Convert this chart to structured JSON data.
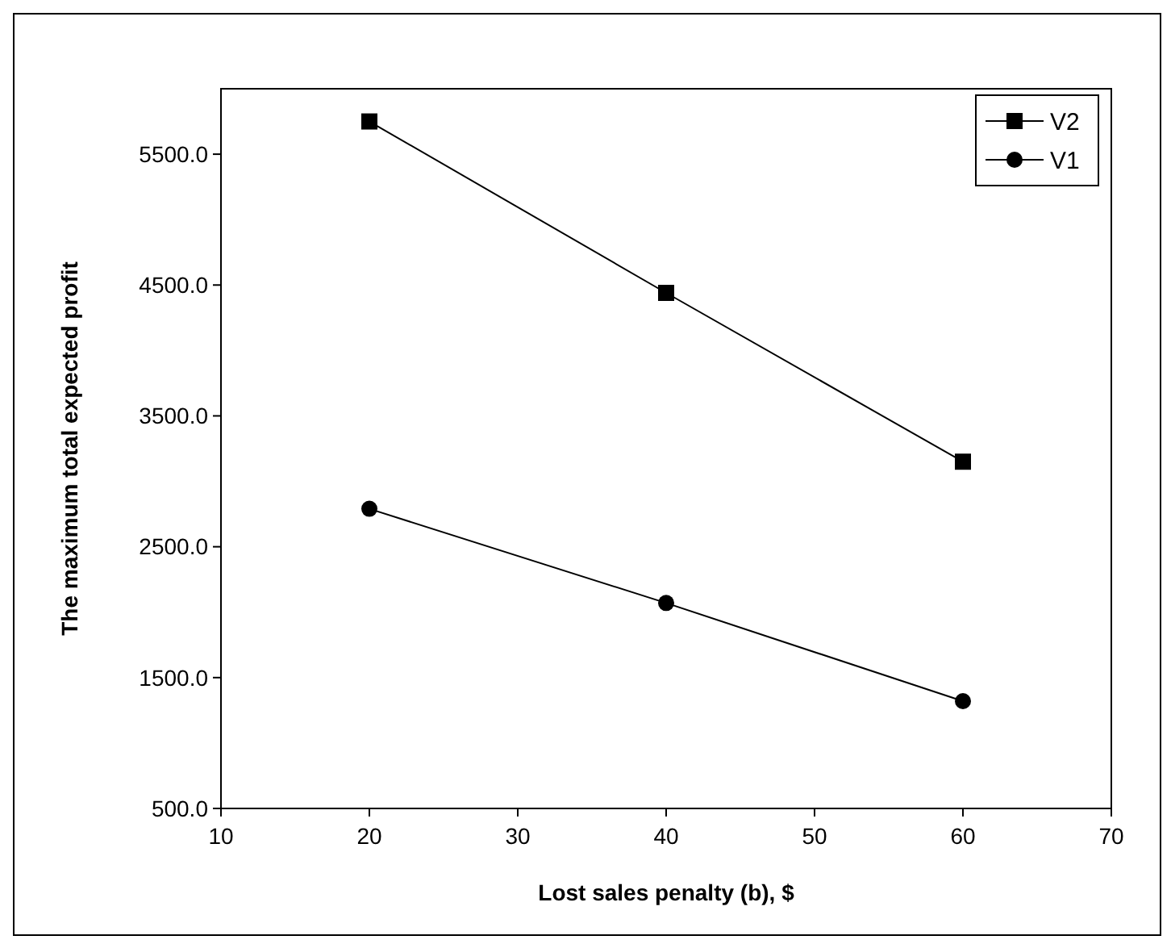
{
  "chart_data": {
    "type": "line",
    "xlabel": "Lost sales penalty (b), $",
    "ylabel": "The maximum total expected profit",
    "x": [
      20,
      40,
      60
    ],
    "series": [
      {
        "name": "V2",
        "color": "#000000",
        "marker": "square",
        "values": [
          5750,
          4440,
          3150
        ]
      },
      {
        "name": "V1",
        "color": "#000000",
        "marker": "circle",
        "values": [
          2790,
          2070,
          1320
        ]
      }
    ],
    "xlim": [
      10,
      70
    ],
    "xticks": [
      10,
      20,
      30,
      40,
      50,
      60,
      70
    ],
    "ylim": [
      500,
      6000
    ],
    "yticks": [
      {
        "value": 500,
        "label": "500.0"
      },
      {
        "value": 1500,
        "label": "1500.0"
      },
      {
        "value": 2500,
        "label": "2500.0"
      },
      {
        "value": 3500,
        "label": "3500.0"
      },
      {
        "value": 4500,
        "label": "4500.0"
      },
      {
        "value": 5500,
        "label": "5500.0"
      }
    ],
    "grid": false,
    "legend": "top right",
    "line_style": "solid"
  }
}
